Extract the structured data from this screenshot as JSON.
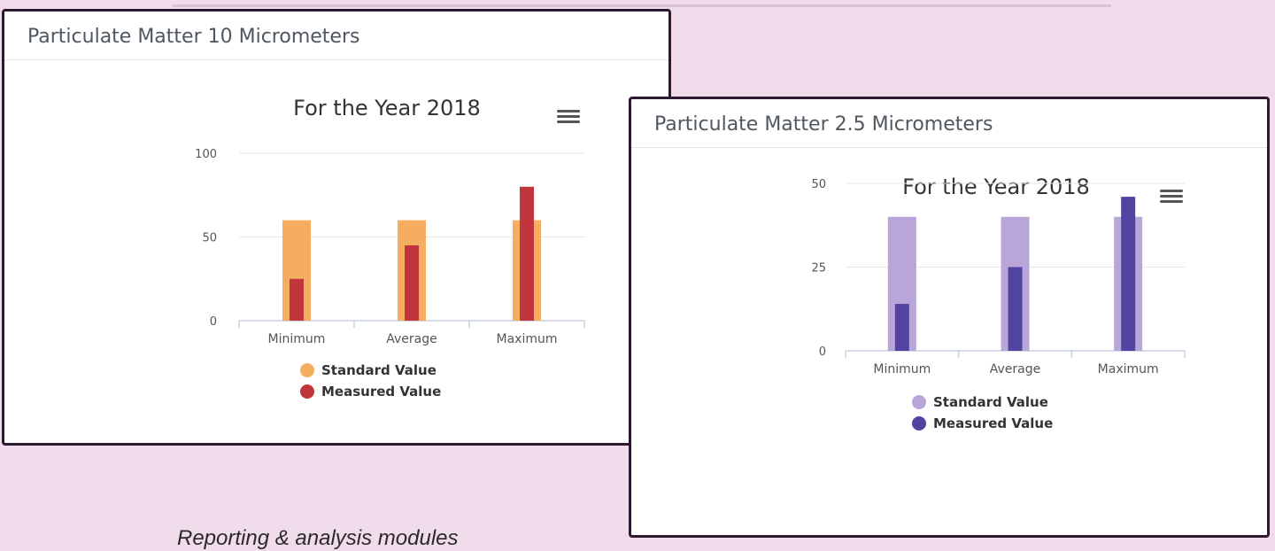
{
  "caption": "Reporting & analysis modules",
  "cards": [
    {
      "title": "Particulate Matter 10 Micrometers",
      "chart_data": {
        "type": "bar",
        "title": "For the Year 2018",
        "categories": [
          "Minimum",
          "Average",
          "Maximum"
        ],
        "series": [
          {
            "name": "Standard Value",
            "values": [
              60,
              60,
              60
            ],
            "color": "#f5ae5f"
          },
          {
            "name": "Measured Value",
            "values": [
              25,
              45,
              80
            ],
            "color": "#c0363c"
          }
        ],
        "yticks": [
          0,
          50,
          100
        ],
        "ylim": [
          0,
          100
        ],
        "grid": true,
        "legend": "bottom-center"
      }
    },
    {
      "title": "Particulate Matter 2.5 Micrometers",
      "chart_data": {
        "type": "bar",
        "title": "For the Year 2018",
        "categories": [
          "Minimum",
          "Average",
          "Maximum"
        ],
        "series": [
          {
            "name": "Standard Value",
            "values": [
              40,
              40,
              40
            ],
            "color": "#b9a6d9"
          },
          {
            "name": "Measured Value",
            "values": [
              14,
              25,
              46
            ],
            "color": "#5343a0"
          }
        ],
        "yticks": [
          0,
          25,
          50
        ],
        "ylim": [
          0,
          50
        ],
        "grid": true,
        "legend": "bottom-center"
      }
    }
  ]
}
